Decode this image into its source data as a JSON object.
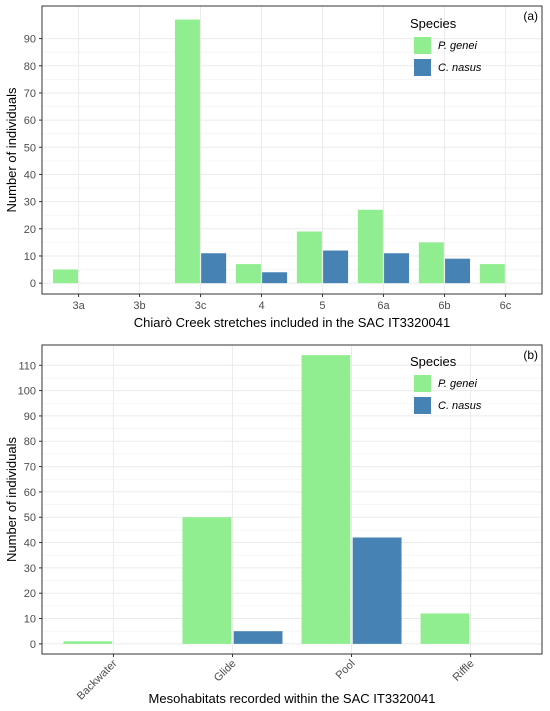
{
  "chart_data": [
    {
      "type": "bar",
      "panel_label": "(a)",
      "xlabel": "Chiarò Creek stretches included in the SAC IT3320041",
      "ylabel": "Number of individuals",
      "categories": [
        "3a",
        "3b",
        "3c",
        "4",
        "5",
        "6a",
        "6b",
        "6c"
      ],
      "ylim": [
        -4,
        102
      ],
      "yticks": [
        0,
        10,
        20,
        30,
        40,
        50,
        60,
        70,
        80,
        90
      ],
      "grid": true,
      "x_tick_rotation": 0,
      "legend": {
        "title": "Species",
        "position": "top-right"
      },
      "series": [
        {
          "name": "P. genei",
          "color": "#90ee90",
          "values": [
            5,
            0,
            97,
            7,
            19,
            27,
            15,
            7
          ]
        },
        {
          "name": "C. nasus",
          "color": "#4682b4",
          "values": [
            0,
            0,
            11,
            4,
            12,
            11,
            9,
            0
          ]
        }
      ]
    },
    {
      "type": "bar",
      "panel_label": "(b)",
      "xlabel": "Mesohabitats recorded within the SAC IT3320041",
      "ylabel": "Number of individuals",
      "categories": [
        "Backwater",
        "Glide",
        "Pool",
        "Riffle"
      ],
      "ylim": [
        -4,
        118
      ],
      "yticks": [
        0,
        10,
        20,
        30,
        40,
        50,
        60,
        70,
        80,
        90,
        100,
        110
      ],
      "grid": true,
      "x_tick_rotation": -45,
      "legend": {
        "title": "Species",
        "position": "top-right"
      },
      "series": [
        {
          "name": "P. genei",
          "color": "#90ee90",
          "values": [
            1,
            50,
            114,
            12
          ]
        },
        {
          "name": "C. nasus",
          "color": "#4682b4",
          "values": [
            0,
            5,
            42,
            0
          ]
        }
      ]
    }
  ]
}
